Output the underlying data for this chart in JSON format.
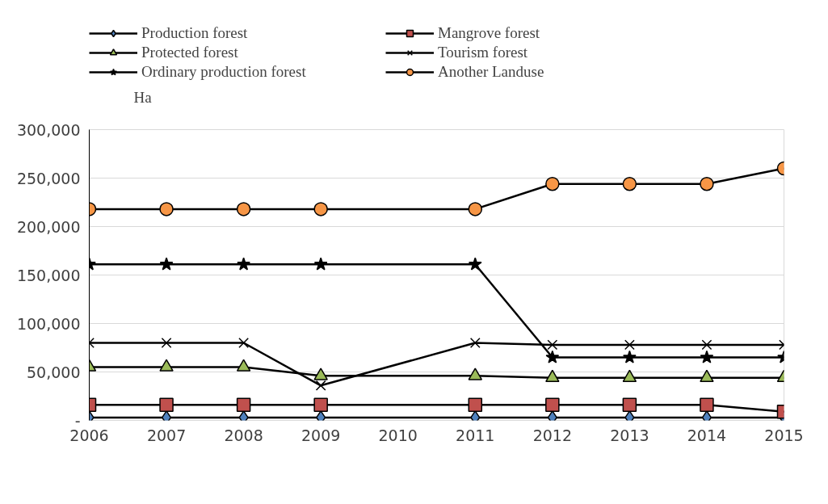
{
  "chart_data": {
    "type": "line",
    "ylabel": "Ha",
    "xlim": [
      2006,
      2015
    ],
    "xticks": [
      2006,
      2007,
      2008,
      2009,
      2010,
      2011,
      2012,
      2013,
      2014,
      2015
    ],
    "ylim": [
      0,
      300000
    ],
    "yticks": [
      {
        "value": 0,
        "label": "-"
      },
      {
        "value": 50000,
        "label": "50,000"
      },
      {
        "value": 100000,
        "label": "100,000"
      },
      {
        "value": 150000,
        "label": "150,000"
      },
      {
        "value": 200000,
        "label": "200,000"
      },
      {
        "value": 250000,
        "label": "250,000"
      },
      {
        "value": 300000,
        "label": "300,000"
      }
    ],
    "grid": "y",
    "legend": "top",
    "x": [
      2006,
      2007,
      2008,
      2009,
      2011,
      2012,
      2013,
      2014,
      2015
    ],
    "series": [
      {
        "name": "Production forest",
        "color": "#4f81bd",
        "marker": "diamond",
        "values": [
          3000,
          3000,
          3000,
          3000,
          3000,
          3000,
          3000,
          3000,
          3000
        ]
      },
      {
        "name": "Mangrove forest",
        "color": "#c0504d",
        "marker": "square",
        "values": [
          16000,
          16000,
          16000,
          16000,
          16000,
          16000,
          16000,
          16000,
          9000
        ]
      },
      {
        "name": "Protected forest",
        "color": "#9bbb59",
        "marker": "triangle",
        "values": [
          55000,
          55000,
          55000,
          46000,
          46000,
          44000,
          44000,
          44000,
          44000
        ]
      },
      {
        "name": "Tourism forest",
        "color": "#000000",
        "marker": "cross",
        "values": [
          80000,
          80000,
          80000,
          36000,
          80000,
          78000,
          78000,
          78000,
          78000
        ]
      },
      {
        "name": "Ordinary production forest",
        "color": "#000000",
        "marker": "star",
        "values": [
          161000,
          161000,
          161000,
          161000,
          161000,
          65000,
          65000,
          65000,
          65000
        ]
      },
      {
        "name": "Another Landuse",
        "color": "#f79646",
        "marker": "circle",
        "values": [
          218000,
          218000,
          218000,
          218000,
          218000,
          244000,
          244000,
          244000,
          260000
        ]
      }
    ]
  }
}
